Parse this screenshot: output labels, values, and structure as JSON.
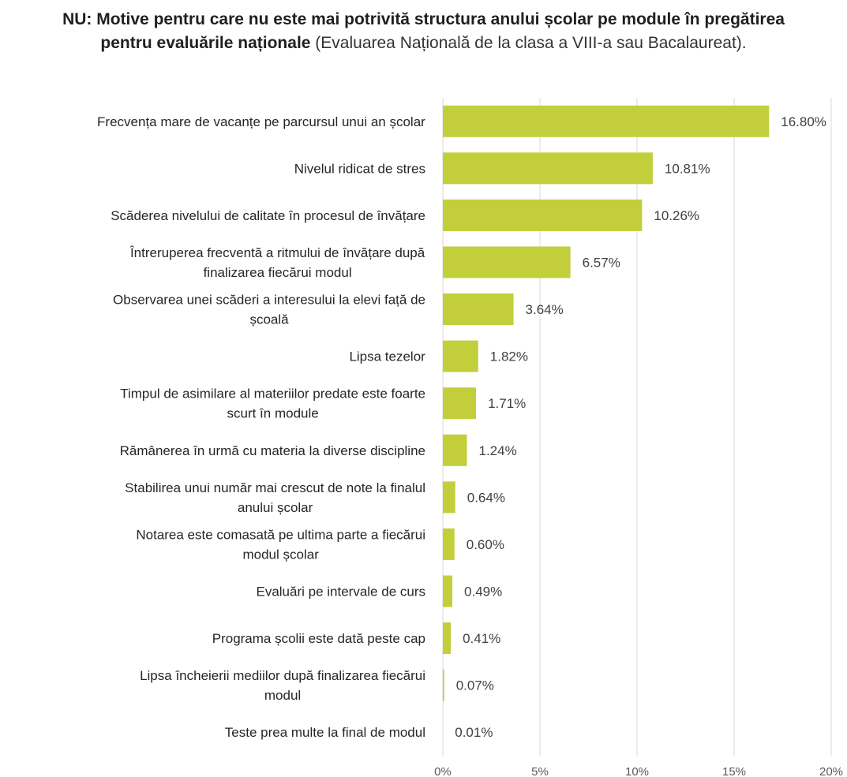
{
  "chart_data": {
    "type": "bar",
    "orientation": "horizontal",
    "title_bold": "NU: Motive pentru care nu este mai potrivită structura anului școlar pe module în pregătirea pentru evaluările naționale",
    "title_regular": " (Evaluarea Națională de la clasa a VIII-a sau Bacalaureat).",
    "categories": [
      [
        "Frecvența mare de vacanțe pe parcursul unui an școlar"
      ],
      [
        "Nivelul ridicat de stres"
      ],
      [
        "Scăderea nivelului de calitate în procesul de învățare"
      ],
      [
        "Întreruperea frecventă a ritmului de învățare după",
        "finalizarea fiecărui modul"
      ],
      [
        "Observarea unei scăderi a interesului la elevi față de",
        "școală"
      ],
      [
        "Lipsa tezelor"
      ],
      [
        "Timpul de asimilare al materiilor predate este foarte",
        "scurt în module"
      ],
      [
        "Rămânerea în urmă cu materia la diverse discipline"
      ],
      [
        "Stabilirea unui număr mai crescut de note la finalul",
        "anului școlar"
      ],
      [
        "Notarea este comasată pe ultima parte a fiecărui",
        "modul școlar"
      ],
      [
        "Evaluări pe intervale de curs"
      ],
      [
        "Programa școlii este dată peste cap"
      ],
      [
        "Lipsa încheierii mediilor după finalizarea fiecărui",
        "modul"
      ],
      [
        "Teste prea multe la final de modul"
      ]
    ],
    "values": [
      16.8,
      10.81,
      10.26,
      6.57,
      3.64,
      1.82,
      1.71,
      1.24,
      0.64,
      0.6,
      0.49,
      0.41,
      0.07,
      0.01
    ],
    "data_labels": [
      "16.80%",
      "10.81%",
      "10.26%",
      "6.57%",
      "3.64%",
      "1.82%",
      "1.71%",
      "1.24%",
      "0.64%",
      "0.60%",
      "0.49%",
      "0.41%",
      "0.07%",
      "0.01%"
    ],
    "xlim": [
      0,
      20
    ],
    "x_ticks": [
      0,
      5,
      10,
      15,
      20
    ],
    "x_tick_labels": [
      "0%",
      "5%",
      "10%",
      "15%",
      "20%"
    ],
    "grid": "vertical",
    "legend": "none",
    "bar_color": "#c2cf3a",
    "gridline_color": "#d9d9d9"
  }
}
